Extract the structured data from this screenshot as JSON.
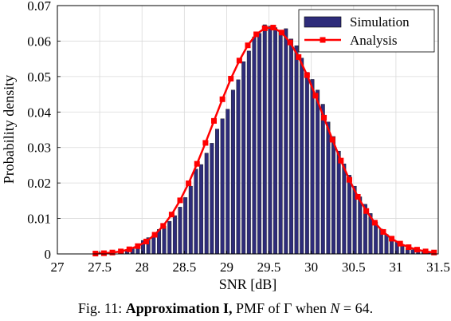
{
  "chart_data": {
    "type": "bar",
    "xlabel": "SNR [dB]",
    "ylabel": "Probability density",
    "xlim": [
      27,
      31.5
    ],
    "ylim": [
      0,
      0.07
    ],
    "xticks": [
      "27",
      "27.5",
      "28",
      "28.5",
      "29",
      "29.5",
      "30",
      "30.5",
      "31",
      "31.5"
    ],
    "yticks": [
      "0",
      "0.01",
      "0.02",
      "0.03",
      "0.04",
      "0.05",
      "0.06",
      "0.07"
    ],
    "grid": true,
    "legend_position": "top-right",
    "bar_width": 0.0625,
    "series": [
      {
        "name": "Simulation",
        "kind": "bar",
        "color": "#2e2c7a",
        "x": [
          27.7625,
          27.825,
          27.8875,
          27.95,
          28.0125,
          28.075,
          28.1375,
          28.2,
          28.2625,
          28.325,
          28.3875,
          28.45,
          28.5125,
          28.575,
          28.6375,
          28.7,
          28.7625,
          28.825,
          28.8875,
          28.95,
          29.0125,
          29.075,
          29.1375,
          29.2,
          29.2625,
          29.325,
          29.3875,
          29.45,
          29.5125,
          29.575,
          29.6375,
          29.7,
          29.7625,
          29.825,
          29.8875,
          29.95,
          30.0125,
          30.075,
          30.1375,
          30.2,
          30.2625,
          30.325,
          30.3875,
          30.45,
          30.5125,
          30.575,
          30.6375,
          30.7,
          30.7625,
          30.825,
          30.8875,
          30.95,
          31.0125,
          31.075,
          31.1375,
          31.2,
          31.2625,
          31.325,
          31.3875
        ],
        "values": [
          0.0006,
          0.0012,
          0.0018,
          0.0027,
          0.0038,
          0.0046,
          0.0052,
          0.0069,
          0.0078,
          0.0092,
          0.0108,
          0.0132,
          0.0159,
          0.0191,
          0.0239,
          0.0252,
          0.0284,
          0.0312,
          0.0352,
          0.0381,
          0.0408,
          0.0462,
          0.0491,
          0.0542,
          0.0572,
          0.0612,
          0.0622,
          0.0646,
          0.0642,
          0.0638,
          0.0631,
          0.0635,
          0.0606,
          0.0587,
          0.0552,
          0.0512,
          0.0492,
          0.0462,
          0.0422,
          0.0372,
          0.0331,
          0.029,
          0.0254,
          0.0222,
          0.0191,
          0.0161,
          0.014,
          0.0114,
          0.009,
          0.007,
          0.0055,
          0.0042,
          0.0035,
          0.0022,
          0.0016,
          0.0012,
          0.0008,
          0.0006,
          0.0004
        ]
      },
      {
        "name": "Analysis",
        "kind": "line",
        "color": "#ff0000",
        "x": [
          27.45,
          27.55,
          27.65,
          27.75,
          27.85,
          27.95,
          28.05,
          28.15,
          28.25,
          28.35,
          28.45,
          28.55,
          28.65,
          28.75,
          28.85,
          28.95,
          29.05,
          29.15,
          29.25,
          29.35,
          29.45,
          29.55,
          29.65,
          29.75,
          29.85,
          29.95,
          30.05,
          30.15,
          30.25,
          30.35,
          30.45,
          30.55,
          30.65,
          30.75,
          30.85,
          30.95,
          31.05,
          31.15,
          31.25,
          31.35,
          31.45
        ],
        "values": [
          0.0001,
          0.0002,
          0.0004,
          0.0007,
          0.0013,
          0.0022,
          0.0035,
          0.0054,
          0.0079,
          0.0111,
          0.0151,
          0.0199,
          0.0254,
          0.0313,
          0.0375,
          0.0436,
          0.0494,
          0.0545,
          0.0588,
          0.0619,
          0.0636,
          0.0638,
          0.0624,
          0.0596,
          0.0555,
          0.0504,
          0.0446,
          0.0384,
          0.0322,
          0.0263,
          0.0209,
          0.0161,
          0.0121,
          0.0088,
          0.0062,
          0.0043,
          0.0029,
          0.0019,
          0.0012,
          0.0007,
          0.0004
        ]
      }
    ]
  },
  "caption": {
    "prefix": "Fig. 11: ",
    "bold": "Approximation I,",
    "mid": " PMF of Γ when ",
    "math": "N",
    "suffix": " = 64."
  }
}
